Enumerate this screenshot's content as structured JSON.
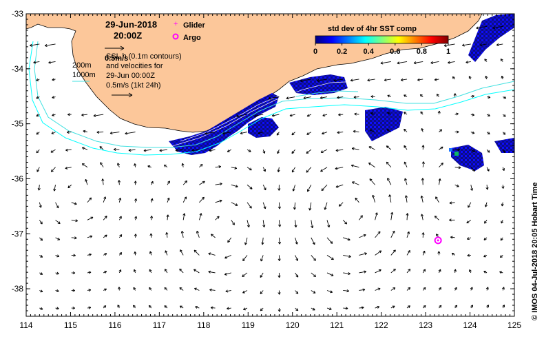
{
  "header": {
    "date": "29-Jun-2018",
    "time": "20:00Z"
  },
  "legend": {
    "glider": "Glider",
    "argo": "Argo",
    "glider_color": "#ff00ff",
    "argo_color": "#ff00ff"
  },
  "annotations": {
    "scale_label": "0.5m/s",
    "ssh_line": "SSL h (0.1m contours)",
    "velocities_line": "and velocities for",
    "velocities_date": "29-Jun 00:00Z",
    "velocities_scale": "0.5m/s (1kt 24h)",
    "depth_200": "200m",
    "depth_1000": "1000m"
  },
  "colorbar": {
    "title": "std dev of 4hr SST comp",
    "ticks": [
      "0",
      "0.2",
      "0.4",
      "0.6",
      "0.8",
      "1"
    ],
    "range": [
      0,
      1
    ],
    "colormap": [
      "#00007f",
      "#0000ff",
      "#007fff",
      "#00ffff",
      "#7fff7f",
      "#ffff00",
      "#ff7f00",
      "#ff0000",
      "#7f0000"
    ]
  },
  "credit": "©  IMOS 04-Jul-2018 20:05 Hobart Time",
  "axes": {
    "x_ticks": [
      "114",
      "115",
      "116",
      "117",
      "118",
      "119",
      "120",
      "121",
      "122",
      "123",
      "124",
      "125"
    ],
    "y_ticks": [
      "-33",
      "-34",
      "-35",
      "-36",
      "-37",
      "-38"
    ],
    "lon_range": [
      114,
      125
    ],
    "lat_range": [
      -38.5,
      -33
    ]
  },
  "colors": {
    "land": "#fcc79a",
    "contour_200": "#40e0e0",
    "contour_1000": "#00ffff",
    "arrow": "#000000"
  },
  "argo_marker": {
    "lon": 123.28,
    "lat": -37.12
  },
  "eddies": [
    {
      "lon": 115.1,
      "lat": -36.2,
      "r": 0.7,
      "dir": 1
    },
    {
      "lon": 118.4,
      "lat": -36.9,
      "r": 0.9,
      "dir": -1
    },
    {
      "lon": 121.3,
      "lat": -36.6,
      "r": 1.1,
      "dir": 1
    },
    {
      "lon": 123.6,
      "lat": -36.2,
      "r": 0.6,
      "dir": -1
    }
  ]
}
